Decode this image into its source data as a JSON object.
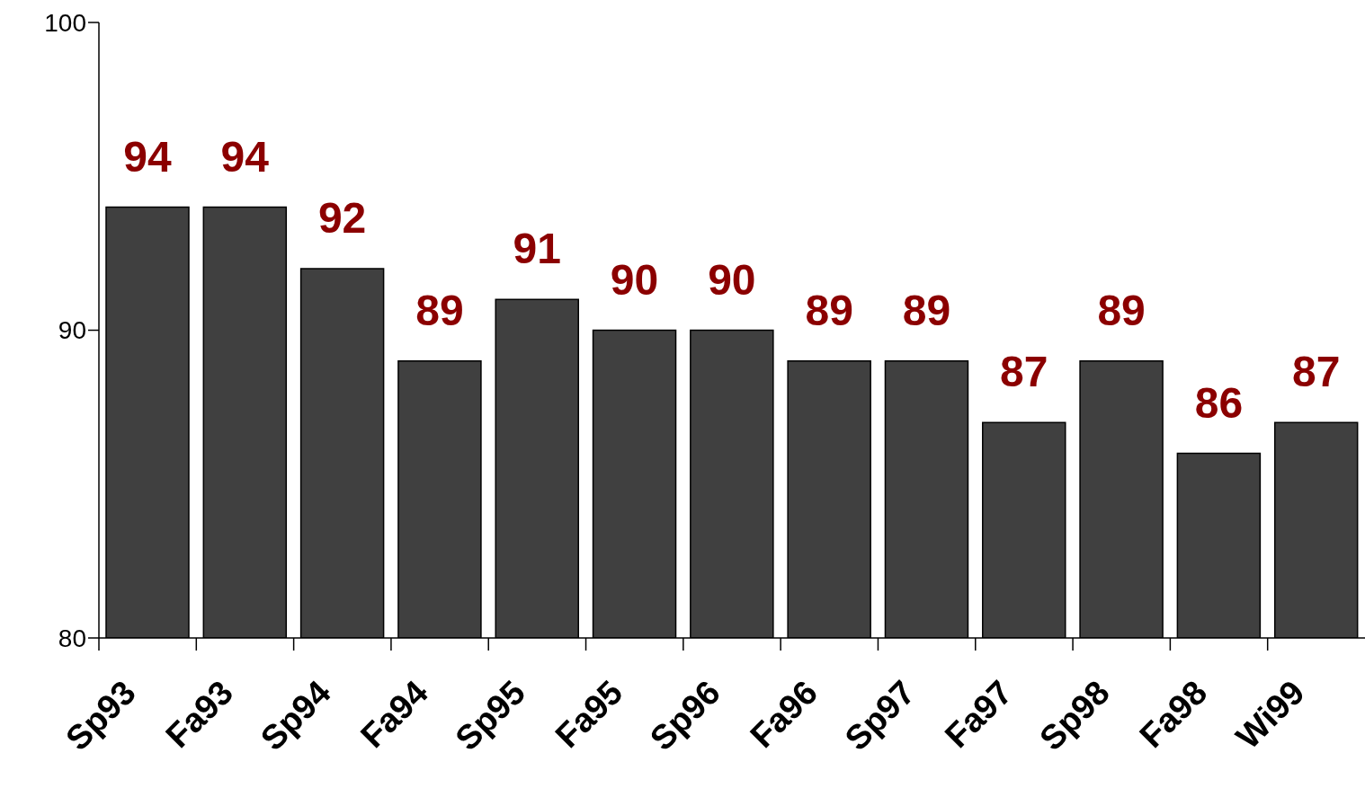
{
  "chart_data": {
    "type": "bar",
    "categories": [
      "Sp93",
      "Fa93",
      "Sp94",
      "Fa94",
      "Sp95",
      "Fa95",
      "Sp96",
      "Fa96",
      "Sp97",
      "Fa97",
      "Sp98",
      "Fa98",
      "Wi99"
    ],
    "values": [
      94,
      94,
      92,
      89,
      91,
      90,
      90,
      89,
      89,
      87,
      89,
      86,
      87
    ],
    "color": "#404040",
    "ylim": [
      80,
      100
    ],
    "yticks": [
      80,
      90,
      100
    ],
    "data_labels": true
  }
}
